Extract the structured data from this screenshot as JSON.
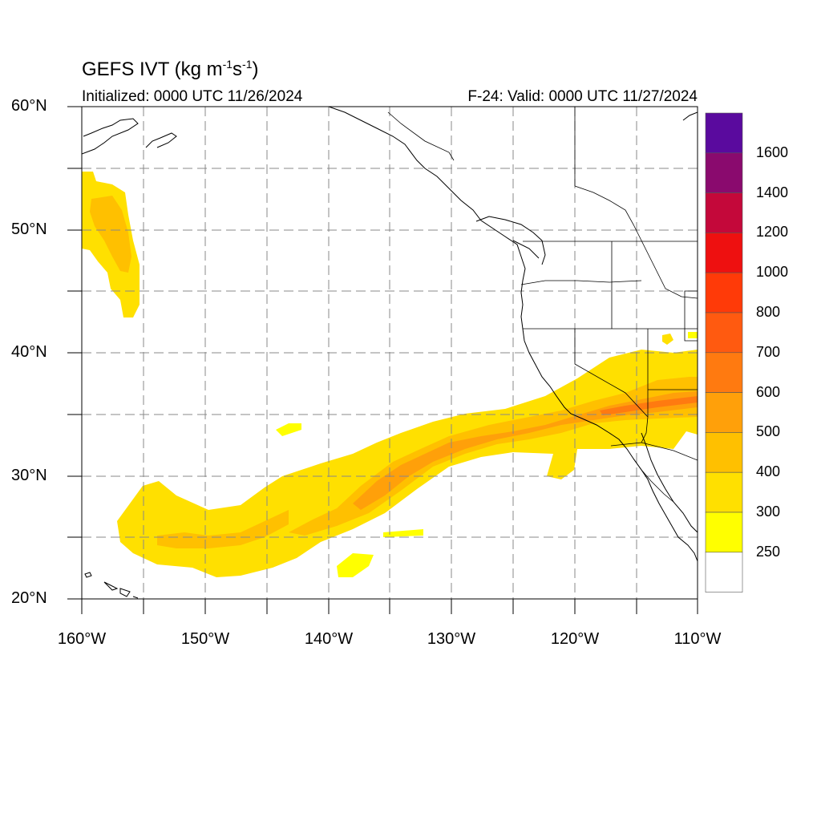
{
  "title": {
    "text": "GEFS IVT (kg m",
    "exp1": "-1",
    "mid": "s",
    "exp2": "-1",
    "end": ")"
  },
  "init_text": "Initialized: 0000 UTC 11/26/2024",
  "valid_text": "F-24: Valid: 0000 UTC 11/27/2024",
  "lat_labels": [
    "60°N",
    "50°N",
    "40°N",
    "30°N",
    "20°N"
  ],
  "lon_labels": [
    "160°W",
    "150°W",
    "140°W",
    "130°W",
    "120°W",
    "110°W"
  ],
  "colorbar": {
    "labels": [
      "1600",
      "1400",
      "1200",
      "1000",
      "800",
      "700",
      "600",
      "500",
      "400",
      "300",
      "250"
    ],
    "colors": [
      "#5a0a9e",
      "#8a0a6e",
      "#c4083a",
      "#ee1010",
      "#ff3a08",
      "#ff5a10",
      "#ff7a10",
      "#ffa00a",
      "#ffc000",
      "#ffe000",
      "#ffff00",
      "#ffffff"
    ]
  },
  "map": {
    "lon_range": [
      -160,
      -110
    ],
    "lat_range": [
      20,
      60
    ],
    "grid_dashed": true,
    "coastlines": true,
    "state_borders": true
  }
}
